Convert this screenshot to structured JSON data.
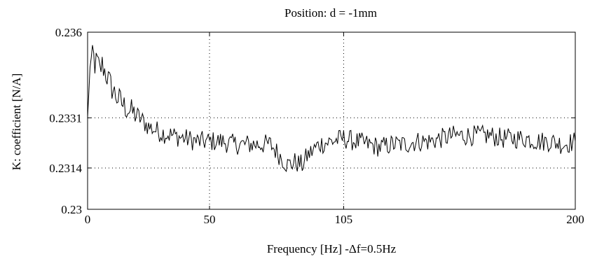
{
  "chart_data": {
    "type": "line",
    "title": "Position: d = -1mm",
    "xlabel": "Frequency [Hz] -Δf=0.5Hz",
    "ylabel": "K: coefficient [N/A]",
    "xlim": [
      0,
      200
    ],
    "ylim": [
      0.23,
      0.236
    ],
    "xticks": [
      0,
      50,
      105,
      200
    ],
    "xtick_labels": [
      "0",
      "50",
      "105",
      "200"
    ],
    "yticks": [
      0.23,
      0.2314,
      0.2331,
      0.236
    ],
    "ytick_labels": [
      "0.23",
      "0.2314",
      "0.2331",
      "0.236"
    ],
    "grid": "dotted",
    "series": [
      {
        "x": [
          0,
          1,
          2,
          3,
          4,
          5,
          6,
          8,
          10,
          12,
          15,
          18,
          20,
          25,
          30,
          35,
          40,
          45,
          50,
          55,
          60,
          65,
          70,
          75,
          80,
          82,
          85,
          88,
          90,
          95,
          100,
          105,
          110,
          115,
          120,
          125,
          130,
          135,
          140,
          145,
          150,
          155,
          160,
          165,
          170,
          175,
          180,
          185,
          190,
          195,
          200
        ],
        "y": [
          0.2331,
          0.2348,
          0.2354,
          0.2349,
          0.235,
          0.2347,
          0.2349,
          0.2345,
          0.2341,
          0.2338,
          0.2335,
          0.2333,
          0.2332,
          0.2328,
          0.2326,
          0.2325,
          0.2324,
          0.2323,
          0.2323,
          0.2323,
          0.2322,
          0.2322,
          0.2322,
          0.2322,
          0.2317,
          0.2315,
          0.2316,
          0.2315,
          0.2318,
          0.2322,
          0.2323,
          0.2324,
          0.2323,
          0.2322,
          0.2321,
          0.2322,
          0.2322,
          0.2323,
          0.2323,
          0.2324,
          0.2325,
          0.2325,
          0.2325,
          0.2325,
          0.2324,
          0.2324,
          0.2324,
          0.2323,
          0.2323,
          0.2322,
          0.2323
        ]
      }
    ]
  }
}
